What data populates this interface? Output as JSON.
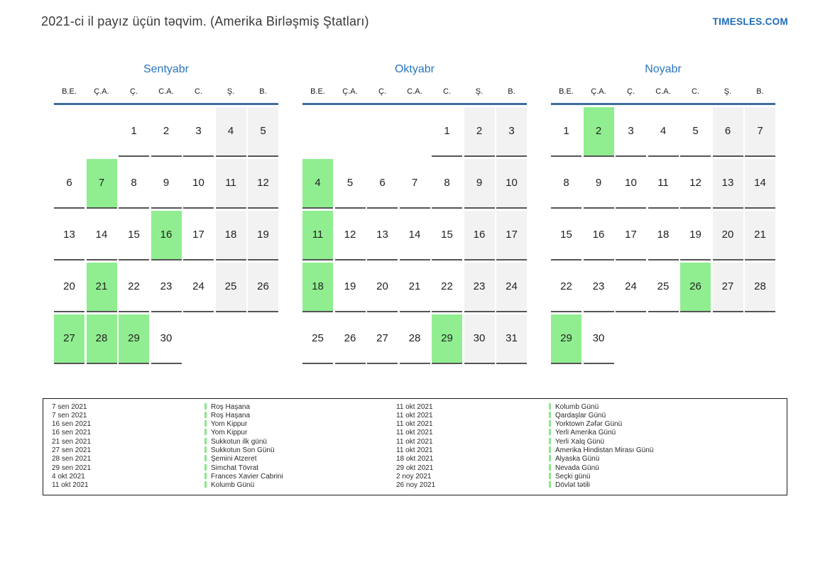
{
  "header": {
    "title": "2021-ci il payız üçün təqvim. (Amerika Birləşmiş Ştatları)",
    "brand": "TIMESLES.COM"
  },
  "weekdays": [
    "B.E.",
    "Ç.A.",
    "Ç.",
    "C.A.",
    "C.",
    "Ş.",
    "B."
  ],
  "months": [
    {
      "name": "Sentyabr",
      "weeks": [
        [
          null,
          null,
          1,
          2,
          3,
          4,
          5
        ],
        [
          6,
          7,
          8,
          9,
          10,
          11,
          12
        ],
        [
          13,
          14,
          15,
          16,
          17,
          18,
          19
        ],
        [
          20,
          21,
          22,
          23,
          24,
          25,
          26
        ],
        [
          27,
          28,
          29,
          30,
          null,
          null,
          null
        ]
      ],
      "highlighted": [
        7,
        16,
        21,
        27,
        28,
        29
      ]
    },
    {
      "name": "Oktyabr",
      "weeks": [
        [
          null,
          null,
          null,
          null,
          1,
          2,
          3
        ],
        [
          4,
          5,
          6,
          7,
          8,
          9,
          10
        ],
        [
          11,
          12,
          13,
          14,
          15,
          16,
          17
        ],
        [
          18,
          19,
          20,
          21,
          22,
          23,
          24
        ],
        [
          25,
          26,
          27,
          28,
          29,
          30,
          31
        ]
      ],
      "highlighted": [
        4,
        11,
        18,
        29
      ]
    },
    {
      "name": "Noyabr",
      "weeks": [
        [
          1,
          2,
          3,
          4,
          5,
          6,
          7
        ],
        [
          8,
          9,
          10,
          11,
          12,
          13,
          14
        ],
        [
          15,
          16,
          17,
          18,
          19,
          20,
          21
        ],
        [
          22,
          23,
          24,
          25,
          26,
          27,
          28
        ],
        [
          29,
          30,
          null,
          null,
          null,
          null,
          null
        ]
      ],
      "highlighted": [
        2,
        26,
        29
      ]
    }
  ],
  "holiday_columns": [
    [
      {
        "date": "7 sen 2021",
        "name": "Roş Haşana"
      },
      {
        "date": "7 sen 2021",
        "name": "Roş Haşana"
      },
      {
        "date": "16 sen 2021",
        "name": "Yom Kippur"
      },
      {
        "date": "16 sen 2021",
        "name": "Yom Kippur"
      },
      {
        "date": "21 sen 2021",
        "name": "Sukkotun ilk günü"
      },
      {
        "date": "27 sen 2021",
        "name": "Sukkotun Son Günü"
      },
      {
        "date": "28 sen 2021",
        "name": "Şemini Atzeret"
      },
      {
        "date": "29 sen 2021",
        "name": "Simchat Tövrat"
      },
      {
        "date": "4 okt 2021",
        "name": "Frances Xavier Cabrini"
      },
      {
        "date": "11 okt 2021",
        "name": "Kolumb Günü"
      }
    ],
    [
      {
        "date": "11 okt 2021",
        "name": "Kolumb Günü"
      },
      {
        "date": "11 okt 2021",
        "name": "Qardaşlar Günü"
      },
      {
        "date": "11 okt 2021",
        "name": "Yorktown Zəfər Günü"
      },
      {
        "date": "11 okt 2021",
        "name": "Yerli Amerika Günü"
      },
      {
        "date": "11 okt 2021",
        "name": "Yerli Xalq Günü"
      },
      {
        "date": "11 okt 2021",
        "name": "Amerika Hindistan Mirası Günü"
      },
      {
        "date": "18 okt 2021",
        "name": "Alyaska Günü"
      },
      {
        "date": "29 okt 2021",
        "name": "Nevada Günü"
      },
      {
        "date": "2 noy 2021",
        "name": "Seçki günü"
      },
      {
        "date": "26 noy 2021",
        "name": "Dövlət tətili"
      }
    ]
  ],
  "colors": {
    "highlight_green": "#90ee90",
    "weekend_gray": "#f2f2f2",
    "accent_blue": "#2b76bd",
    "rule_blue": "#3d6d9e",
    "brand_blue": "#1e6bb4"
  }
}
